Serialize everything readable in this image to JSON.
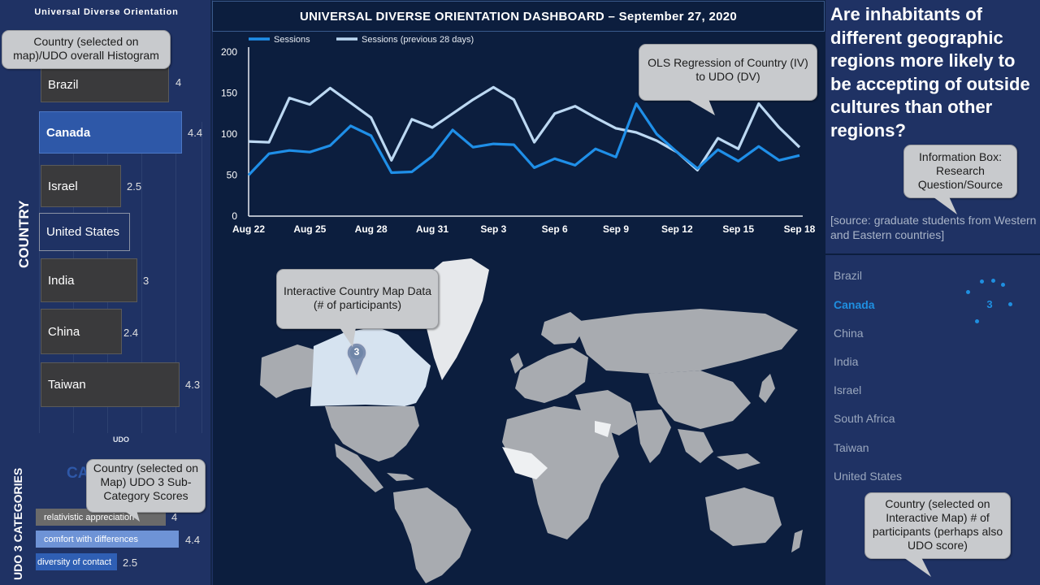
{
  "sidebar": {
    "title": "Universal Diverse Orientation",
    "axis_label": "COUNTRY",
    "x_axis_label": "UDO",
    "histogram_callout": "Country (selected on map)/UDO overall Histogram",
    "bars": [
      {
        "label": "Brazil",
        "value": "4",
        "num": 4,
        "selected": false
      },
      {
        "label": "Canada",
        "value": "4.4",
        "num": 4.4,
        "selected": true
      },
      {
        "label": "Israel",
        "value": "2.5",
        "num": 2.5,
        "selected": false
      },
      {
        "label": "United States",
        "value": "",
        "num": 2.8,
        "selected": false
      },
      {
        "label": "India",
        "value": "3",
        "num": 3,
        "selected": false
      },
      {
        "label": "China",
        "value": "2.4",
        "num": 2.4,
        "selected": false
      },
      {
        "label": "Taiwan",
        "value": "4.3",
        "num": 4.3,
        "selected": false
      }
    ]
  },
  "categories": {
    "axis_label": "UDO 3 CATEGORIES",
    "selected_country": "CANADA",
    "callout": "Country (selected on Map) UDO 3 Sub-Category Scores",
    "items": [
      {
        "label": "relativistic appreciation",
        "value": "4",
        "color": "#6a6a6a"
      },
      {
        "label": "comfort with differences",
        "value": "4.4",
        "color": "#6e93d6"
      },
      {
        "label": "diversity of contact",
        "value": "2.5",
        "color": "#2f5fb4"
      }
    ]
  },
  "header": {
    "title": "UNIVERSAL DIVERSE ORIENTATION DASHBOARD – September 27, 2020"
  },
  "chart_data": {
    "type": "line",
    "x": [
      "Aug 22",
      "Aug 23",
      "Aug 24",
      "Aug 25",
      "Aug 26",
      "Aug 27",
      "Aug 28",
      "Aug 29",
      "Aug 30",
      "Aug 31",
      "Sep 1",
      "Sep 2",
      "Sep 3",
      "Sep 4",
      "Sep 5",
      "Sep 6",
      "Sep 7",
      "Sep 8",
      "Sep 9",
      "Sep 10",
      "Sep 11",
      "Sep 12",
      "Sep 13",
      "Sep 14",
      "Sep 15",
      "Sep 16",
      "Sep 17",
      "Sep 18"
    ],
    "xticks": [
      "Aug 22",
      "Aug 25",
      "Aug 28",
      "Aug 31",
      "Sep 3",
      "Sep 6",
      "Sep 9",
      "Sep 12",
      "Sep 15",
      "Sep 18"
    ],
    "yticks": [
      "0",
      "50",
      "100",
      "150",
      "200"
    ],
    "ylim": [
      0,
      200
    ],
    "series": [
      {
        "name": "Sessions",
        "color": "#1f8fe8",
        "values": [
          50,
          76,
          80,
          78,
          86,
          110,
          98,
          53,
          54,
          73,
          105,
          84,
          88,
          87,
          59,
          70,
          62,
          82,
          72,
          137,
          100,
          78,
          58,
          81,
          67,
          85,
          68,
          74
        ]
      },
      {
        "name": "Sessions (previous 28 days)",
        "color": "#bcd8f2",
        "values": [
          91,
          90,
          144,
          136,
          156,
          138,
          120,
          68,
          118,
          108,
          125,
          142,
          157,
          142,
          90,
          125,
          134,
          120,
          107,
          102,
          92,
          78,
          56,
          95,
          82,
          137,
          108,
          84
        ]
      }
    ],
    "callout": "OLS Regression of Country (IV) to UDO (DV)"
  },
  "map": {
    "callout": "Interactive Country Map Data (# of participants)",
    "pin_value": "3"
  },
  "info": {
    "question": "Are inhabitants of different geographic regions more likely to be accepting of outside cultures than other regions?",
    "callout": "Information Box: Research Question/Source",
    "source": "[source: graduate students from Western and Eastern countries]"
  },
  "country_list": {
    "items": [
      {
        "label": "Brazil",
        "selected": false
      },
      {
        "label": "Canada",
        "selected": true
      },
      {
        "label": "China",
        "selected": false
      },
      {
        "label": "India",
        "selected": false
      },
      {
        "label": "Israel",
        "selected": false
      },
      {
        "label": "South Africa",
        "selected": false
      },
      {
        "label": "Taiwan",
        "selected": false
      },
      {
        "label": "United States",
        "selected": false
      }
    ],
    "count_value": "3",
    "callout": "Country (selected on Interactive Map) # of participants (perhaps also UDO score)"
  }
}
